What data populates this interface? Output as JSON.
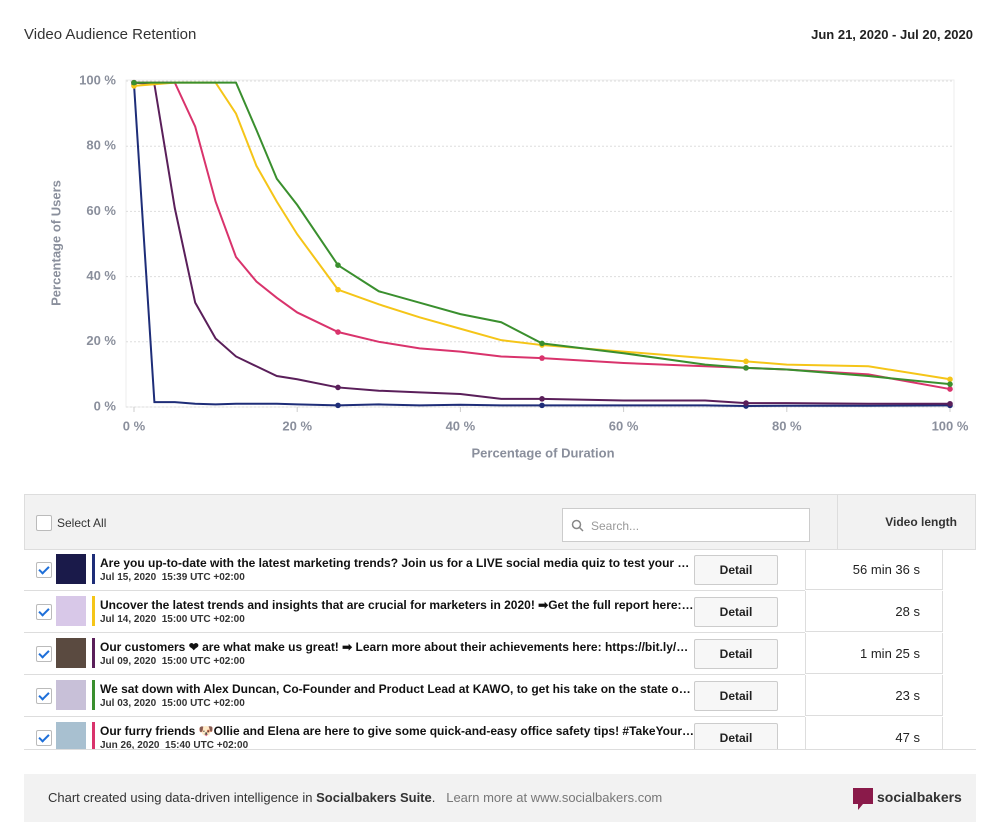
{
  "header": {
    "title": "Video Audience Retention",
    "date_range": "Jun 21, 2020 - Jul 20, 2020"
  },
  "chart_data": {
    "type": "line",
    "xlabel": "Percentage of Duration",
    "ylabel": "Percentage of Users",
    "x": [
      0,
      2.5,
      5,
      7.5,
      10,
      12.5,
      15,
      17.5,
      20,
      25,
      30,
      35,
      40,
      45,
      50,
      60,
      70,
      75,
      80,
      90,
      100
    ],
    "xlim": [
      0,
      100
    ],
    "ylim": [
      0,
      100
    ],
    "xticks": [
      {
        "value": 0,
        "label": "0 %"
      },
      {
        "value": 20,
        "label": "20 %"
      },
      {
        "value": 40,
        "label": "40 %"
      },
      {
        "value": 60,
        "label": "60 %"
      },
      {
        "value": 80,
        "label": "80 %"
      },
      {
        "value": 100,
        "label": "100 %"
      }
    ],
    "yticks": [
      {
        "value": 0,
        "label": "0 %"
      },
      {
        "value": 20,
        "label": "20 %"
      },
      {
        "value": 40,
        "label": "40 %"
      },
      {
        "value": 60,
        "label": "60 %"
      },
      {
        "value": 80,
        "label": "80 %"
      },
      {
        "value": 100,
        "label": "100 %"
      }
    ],
    "grid": true,
    "marker_x": [
      0,
      25,
      50,
      75,
      100
    ],
    "series": [
      {
        "color": "#1e2d78",
        "values": [
          99,
          1.5,
          1.5,
          1,
          0.8,
          1,
          1,
          1,
          0.8,
          0.5,
          0.8,
          0.5,
          0.7,
          0.5,
          0.5,
          0.5,
          0.5,
          0.3,
          0.4,
          0.4,
          0.5
        ]
      },
      {
        "color": "#5a1f5a",
        "values": [
          99.5,
          99,
          61,
          32,
          21,
          15.5,
          12.5,
          9.5,
          8.5,
          6,
          5,
          4.5,
          4,
          2.5,
          2.5,
          2,
          2,
          1.2,
          1.2,
          1,
          1
        ]
      },
      {
        "color": "#d9336c",
        "values": [
          99.5,
          99.5,
          99.5,
          86,
          63,
          46,
          38.5,
          33.5,
          29,
          23,
          20,
          18,
          17,
          15.5,
          15,
          13.5,
          12.5,
          12,
          11.5,
          10,
          5.5
        ]
      },
      {
        "color": "#f5c518",
        "values": [
          98.5,
          99,
          99.5,
          99.5,
          99.5,
          90,
          74,
          63,
          53,
          36,
          31.5,
          27.5,
          24,
          20.5,
          19,
          17,
          15,
          14,
          13,
          12.5,
          8.5
        ]
      },
      {
        "color": "#3a8f2e",
        "values": [
          99.5,
          99.5,
          99.5,
          99.5,
          99.5,
          99.5,
          85,
          70,
          62,
          43.5,
          35.5,
          32,
          28.5,
          26,
          19.5,
          16.5,
          13,
          12,
          11.5,
          9.5,
          7
        ]
      }
    ]
  },
  "table": {
    "select_all": "Select All",
    "search_placeholder": "Search...",
    "length_header": "Video length",
    "button": "Detail",
    "rows": [
      {
        "color": "#1e2d78",
        "thumb": "#1a1a4a",
        "title": "Are you up-to-date with the latest marketing trends? Join us for a LIVE social media quiz to test your …",
        "date": "Jul 15, 2020  15:39 UTC +02:00",
        "length": "56 min 36 s"
      },
      {
        "color": "#f5c518",
        "thumb": "#d8c8e8",
        "title": "Uncover the latest trends and insights that are crucial for marketers in 2020! ➡Get the full report here:…",
        "date": "Jul 14, 2020  15:00 UTC +02:00",
        "length": "28 s"
      },
      {
        "color": "#5a1f5a",
        "thumb": "#5a4a40",
        "title": "Our customers ❤ are what make us great! ➡ Learn more about their achievements here: https://bit.ly/…",
        "date": "Jul 09, 2020  15:00 UTC +02:00",
        "length": "1 min 25 s"
      },
      {
        "color": "#3a8f2e",
        "thumb": "#c8c0d8",
        "title": "We sat down with Alex Duncan, Co-Founder and Product Lead at KAWO, to get his take on the state o…",
        "date": "Jul 03, 2020  15:00 UTC +02:00",
        "length": "23 s"
      },
      {
        "color": "#d9336c",
        "thumb": "#a8c0d0",
        "title": "Our furry friends 🐶Ollie and Elena are here to give some quick-and-easy office safety tips! #TakeYour…",
        "date": "Jun 26, 2020  15:40 UTC +02:00",
        "length": "47 s"
      }
    ]
  },
  "footer": {
    "text": "Chart created using data-driven intelligence in",
    "suite": "Socialbakers Suite",
    "dot": ".",
    "learn": "Learn more at www.socialbakers.com",
    "logo": "socialbakers"
  }
}
